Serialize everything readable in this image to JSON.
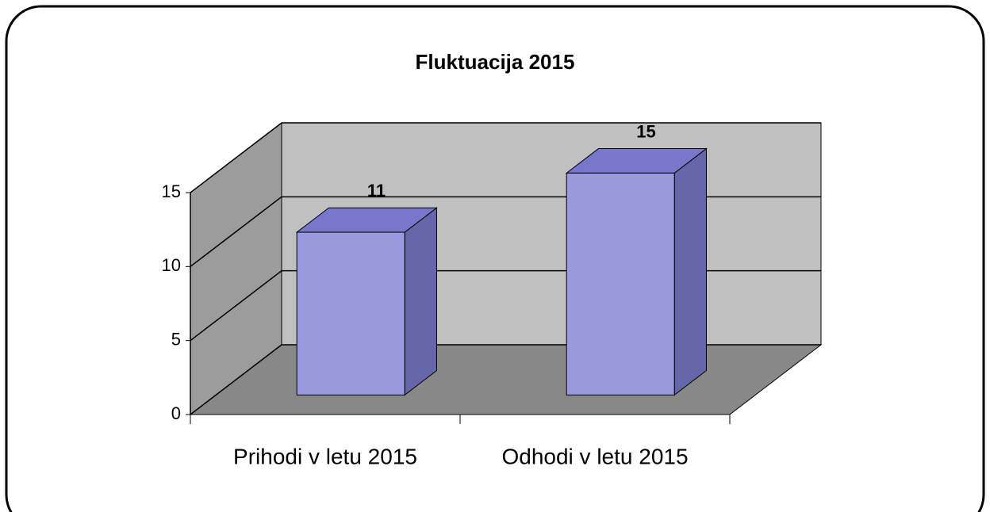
{
  "chart_data": {
    "type": "bar3d",
    "title": "Fluktuacija 2015",
    "categories": [
      "Prihodi v letu 2015",
      "Odhodi v letu 2015"
    ],
    "values": [
      11,
      15
    ],
    "color": "#9999dd",
    "ylim": [
      0,
      15
    ],
    "yticks": [
      0,
      5,
      10,
      15
    ],
    "grid": true
  }
}
